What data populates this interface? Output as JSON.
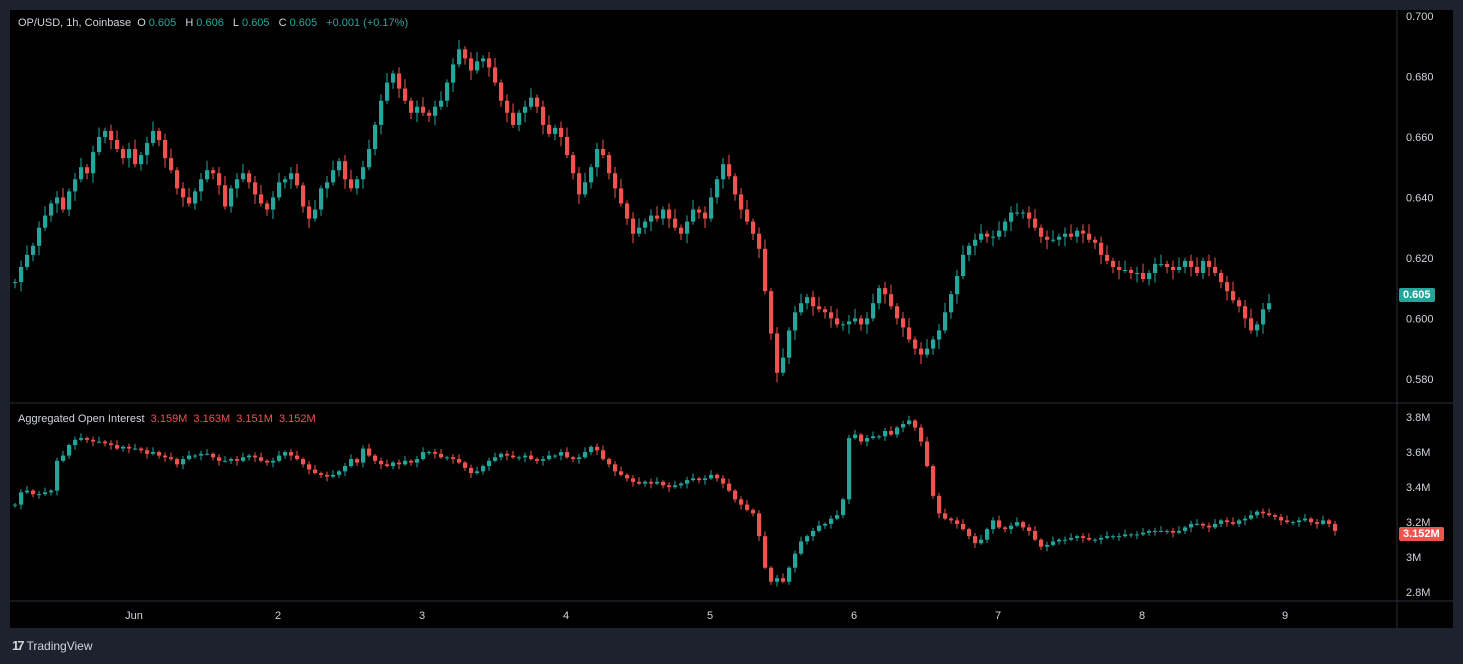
{
  "main_legend": {
    "symbol": "OP/USD, 1h, Coinbase",
    "open_label": "O",
    "open": "0.605",
    "high_label": "H",
    "high": "0.606",
    "low_label": "L",
    "low": "0.605",
    "close_label": "C",
    "close": "0.605",
    "change": "+0.001 (+0.17%)"
  },
  "oi_legend": {
    "title": "Aggregated Open Interest",
    "v1": "3.159M",
    "v2": "3.163M",
    "v3": "3.151M",
    "v4": "3.152M"
  },
  "price_axis_ticks": [
    "0.700",
    "0.680",
    "0.660",
    "0.640",
    "0.620",
    "0.600",
    "0.580"
  ],
  "oi_axis_ticks": [
    "3.8M",
    "3.6M",
    "3.4M",
    "3.2M",
    "3M",
    "2.8M"
  ],
  "time_axis_ticks": [
    "Jun",
    "2",
    "3",
    "4",
    "5",
    "6",
    "7",
    "8",
    "9"
  ],
  "current_price_badge": "0.605",
  "current_oi_badge": "3.152M",
  "footer": {
    "logo_glyph": "17",
    "brand": "TradingView"
  },
  "colors": {
    "up": "#26a69a",
    "down": "#ef5350",
    "background": "#000000",
    "frame": "#1e222d",
    "text": "#d1d4dc"
  },
  "chart_data": [
    {
      "type": "candlestick",
      "title": "OP/USD, 1h, Coinbase",
      "ylim": [
        0.572,
        0.702
      ],
      "x_start": "May 31 ~01:00",
      "x_interval": "1h",
      "series": [
        {
          "name": "OP/USD",
          "close": [
            0.612,
            0.617,
            0.621,
            0.624,
            0.63,
            0.634,
            0.638,
            0.64,
            0.636,
            0.642,
            0.646,
            0.65,
            0.648,
            0.655,
            0.66,
            0.662,
            0.659,
            0.656,
            0.653,
            0.656,
            0.651,
            0.654,
            0.658,
            0.662,
            0.659,
            0.653,
            0.649,
            0.643,
            0.64,
            0.638,
            0.642,
            0.646,
            0.649,
            0.648,
            0.644,
            0.637,
            0.643,
            0.646,
            0.648,
            0.645,
            0.641,
            0.638,
            0.636,
            0.64,
            0.645,
            0.646,
            0.648,
            0.644,
            0.637,
            0.633,
            0.636,
            0.643,
            0.645,
            0.649,
            0.652,
            0.646,
            0.643,
            0.646,
            0.65,
            0.656,
            0.664,
            0.672,
            0.678,
            0.681,
            0.676,
            0.672,
            0.668,
            0.67,
            0.668,
            0.667,
            0.67,
            0.672,
            0.678,
            0.684,
            0.689,
            0.686,
            0.682,
            0.685,
            0.686,
            0.683,
            0.678,
            0.672,
            0.668,
            0.664,
            0.668,
            0.67,
            0.673,
            0.67,
            0.664,
            0.661,
            0.663,
            0.66,
            0.654,
            0.648,
            0.641,
            0.645,
            0.65,
            0.656,
            0.654,
            0.648,
            0.643,
            0.638,
            0.633,
            0.628,
            0.63,
            0.632,
            0.634,
            0.633,
            0.636,
            0.633,
            0.63,
            0.628,
            0.632,
            0.636,
            0.635,
            0.633,
            0.64,
            0.646,
            0.651,
            0.647,
            0.641,
            0.636,
            0.632,
            0.628,
            0.623,
            0.609,
            0.595,
            0.582,
            0.587,
            0.596,
            0.602,
            0.605,
            0.607,
            0.604,
            0.603,
            0.602,
            0.6,
            0.598,
            0.598,
            0.599,
            0.6,
            0.598,
            0.6,
            0.605,
            0.61,
            0.608,
            0.604,
            0.6,
            0.597,
            0.593,
            0.59,
            0.588,
            0.59,
            0.593,
            0.596,
            0.602,
            0.608,
            0.614,
            0.621,
            0.624,
            0.626,
            0.628,
            0.627,
            0.627,
            0.629,
            0.632,
            0.635,
            0.635,
            0.635,
            0.633,
            0.63,
            0.627,
            0.626,
            0.626,
            0.627,
            0.628,
            0.627,
            0.629,
            0.628,
            0.626,
            0.625,
            0.621,
            0.619,
            0.617,
            0.616,
            0.616,
            0.615,
            0.615,
            0.613,
            0.615,
            0.618,
            0.618,
            0.617,
            0.616,
            0.617,
            0.619,
            0.617,
            0.615,
            0.619,
            0.617,
            0.615,
            0.612,
            0.609,
            0.606,
            0.604,
            0.6,
            0.596,
            0.598,
            0.603,
            0.605
          ]
        }
      ]
    },
    {
      "type": "candlestick",
      "title": "Aggregated Open Interest",
      "ylim": [
        2.75,
        3.88
      ],
      "unit": "M",
      "series": [
        {
          "name": "Aggregated Open Interest",
          "close": [
            3.3,
            3.37,
            3.38,
            3.36,
            3.36,
            3.37,
            3.38,
            3.55,
            3.58,
            3.64,
            3.67,
            3.68,
            3.67,
            3.66,
            3.66,
            3.65,
            3.64,
            3.62,
            3.63,
            3.62,
            3.62,
            3.61,
            3.59,
            3.6,
            3.58,
            3.57,
            3.56,
            3.53,
            3.56,
            3.58,
            3.58,
            3.59,
            3.59,
            3.57,
            3.55,
            3.55,
            3.56,
            3.55,
            3.57,
            3.58,
            3.57,
            3.55,
            3.54,
            3.55,
            3.58,
            3.6,
            3.58,
            3.56,
            3.53,
            3.5,
            3.48,
            3.47,
            3.46,
            3.47,
            3.49,
            3.52,
            3.56,
            3.54,
            3.62,
            3.58,
            3.55,
            3.53,
            3.52,
            3.54,
            3.53,
            3.55,
            3.54,
            3.56,
            3.6,
            3.6,
            3.59,
            3.57,
            3.57,
            3.56,
            3.54,
            3.51,
            3.48,
            3.49,
            3.52,
            3.55,
            3.57,
            3.59,
            3.58,
            3.57,
            3.57,
            3.58,
            3.56,
            3.55,
            3.56,
            3.58,
            3.58,
            3.6,
            3.57,
            3.56,
            3.57,
            3.6,
            3.63,
            3.61,
            3.56,
            3.53,
            3.49,
            3.47,
            3.45,
            3.43,
            3.42,
            3.43,
            3.42,
            3.43,
            3.41,
            3.4,
            3.41,
            3.42,
            3.44,
            3.45,
            3.44,
            3.45,
            3.47,
            3.45,
            3.42,
            3.38,
            3.33,
            3.3,
            3.27,
            3.25,
            3.12,
            2.94,
            2.86,
            2.88,
            2.86,
            2.94,
            3.02,
            3.09,
            3.12,
            3.15,
            3.18,
            3.19,
            3.22,
            3.24,
            3.33,
            3.68,
            3.7,
            3.66,
            3.68,
            3.69,
            3.69,
            3.72,
            3.7,
            3.74,
            3.76,
            3.78,
            3.74,
            3.66,
            3.52,
            3.35,
            3.25,
            3.22,
            3.21,
            3.19,
            3.16,
            3.12,
            3.08,
            3.1,
            3.16,
            3.21,
            3.17,
            3.16,
            3.18,
            3.2,
            3.17,
            3.15,
            3.1,
            3.06,
            3.07,
            3.09,
            3.1,
            3.1,
            3.11,
            3.12,
            3.11,
            3.1,
            3.1,
            3.11,
            3.12,
            3.12,
            3.12,
            3.13,
            3.13,
            3.13,
            3.14,
            3.15,
            3.15,
            3.15,
            3.15,
            3.14,
            3.15,
            3.17,
            3.19,
            3.19,
            3.18,
            3.17,
            3.19,
            3.21,
            3.2,
            3.19,
            3.21,
            3.22,
            3.24,
            3.26,
            3.25,
            3.24,
            3.23,
            3.21,
            3.2,
            3.2,
            3.21,
            3.22,
            3.2,
            3.19,
            3.21,
            3.19,
            3.15
          ]
        }
      ]
    }
  ]
}
